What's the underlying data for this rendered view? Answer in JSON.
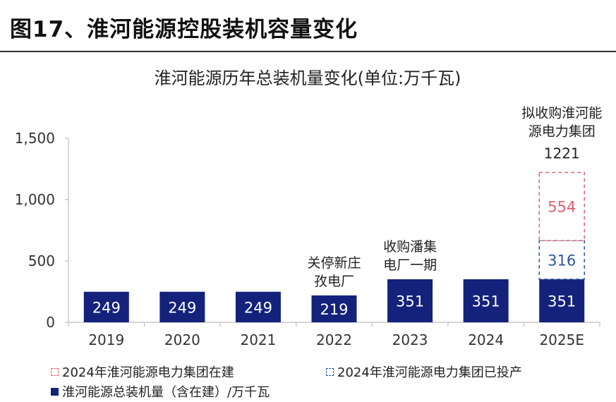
{
  "figure_title": "图17、淮河能源控股装机容量变化",
  "colors": {
    "base": "#14227c",
    "commissioned": "#2e55a6",
    "under_construction": "#e06070",
    "axis": "#bfbfbf"
  },
  "chart_data": {
    "type": "bar",
    "stacked": true,
    "title": "淮河能源历年总装机量变化(单位:万千瓦)",
    "categories": [
      "2019",
      "2020",
      "2021",
      "2022",
      "2023",
      "2024",
      "2025E"
    ],
    "ylim": [
      0,
      1500
    ],
    "yticks": [
      "0",
      "500",
      "1,000",
      "1,500"
    ],
    "ytick_values": [
      0,
      500,
      1000,
      1500
    ],
    "series": [
      {
        "name": "淮河能源总装机量（含在建）/万千瓦",
        "values": [
          249,
          249,
          249,
          219,
          351,
          351,
          351
        ],
        "labels": [
          "249",
          "249",
          "249",
          "219",
          "351",
          "351",
          "351"
        ]
      },
      {
        "name": "2024年淮河能源电力集团已投产",
        "values": [
          0,
          0,
          0,
          0,
          0,
          0,
          316
        ],
        "labels": [
          "",
          "",
          "",
          "",
          "",
          "",
          "316"
        ]
      },
      {
        "name": "2024年淮河能源电力集团在建",
        "values": [
          0,
          0,
          0,
          0,
          0,
          0,
          554
        ],
        "labels": [
          "",
          "",
          "",
          "",
          "",
          "",
          "554"
        ]
      }
    ],
    "total_label": "1221",
    "annotations": [
      {
        "category": "2022",
        "lines": [
          "关停新庄",
          "孜电厂"
        ]
      },
      {
        "category": "2023",
        "lines": [
          "收购潘集",
          "电厂一期"
        ]
      },
      {
        "category": "2025E",
        "lines": [
          "拟收购淮河能",
          "源电力集团"
        ]
      }
    ],
    "grid": false,
    "legend_position": "bottom"
  }
}
